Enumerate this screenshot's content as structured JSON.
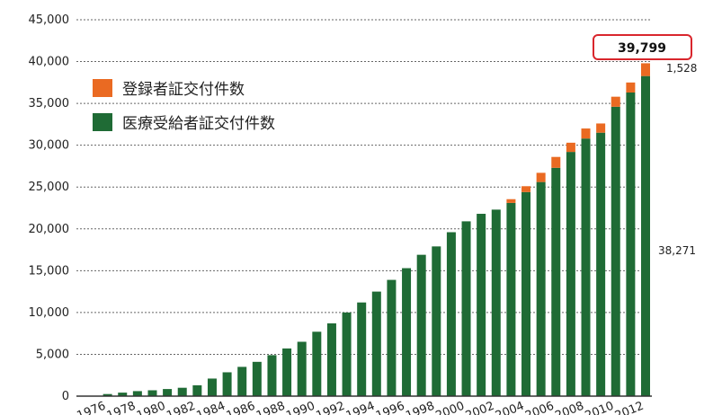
{
  "chart_data": {
    "type": "bar",
    "stacked": true,
    "title": "",
    "xlabel": "",
    "ylabel": "",
    "ylim": [
      0,
      45000
    ],
    "yticks": [
      "0",
      "5,000",
      "10,000",
      "15,000",
      "20,000",
      "25,000",
      "30,000",
      "35,000",
      "40,000",
      "45,000"
    ],
    "ytick_values": [
      0,
      5000,
      10000,
      15000,
      20000,
      25000,
      30000,
      35000,
      40000,
      45000
    ],
    "grid": "horizontal dotted",
    "legend_position": "top-left",
    "categories": [
      "1976",
      "1977",
      "1978",
      "1979",
      "1980",
      "1981",
      "1982",
      "1983",
      "1984",
      "1985",
      "1986",
      "1987",
      "1988",
      "1989",
      "1990",
      "1991",
      "1992",
      "1993",
      "1994",
      "1995",
      "1996",
      "1997",
      "1998",
      "1999",
      "2000",
      "2001",
      "2002",
      "2003",
      "2004",
      "2005",
      "2006",
      "2007",
      "2008",
      "2009",
      "2010",
      "2011",
      "2012",
      "2013"
    ],
    "xtick_labels": [
      "1976",
      "1978",
      "1980",
      "1982",
      "1984",
      "1986",
      "1988",
      "1990",
      "1992",
      "1994",
      "1996",
      "1998",
      "2000",
      "2002",
      "2004",
      "2006",
      "2008",
      "2010",
      "2012"
    ],
    "series": [
      {
        "name": "医療受給者証交付件数",
        "color": "#1f6b35",
        "values": [
          50,
          250,
          420,
          600,
          700,
          850,
          1000,
          1300,
          2100,
          2850,
          3500,
          4100,
          4900,
          5700,
          6500,
          7700,
          8700,
          10000,
          11200,
          12500,
          13900,
          15300,
          16900,
          17900,
          19600,
          20900,
          21800,
          22300,
          23100,
          24400,
          25600,
          27300,
          29200,
          30800,
          31500,
          34600,
          36300,
          38271
        ]
      },
      {
        "name": "登録者証交付件数",
        "color": "#ea6a22",
        "values": [
          0,
          0,
          0,
          0,
          0,
          0,
          0,
          0,
          0,
          0,
          0,
          0,
          0,
          0,
          0,
          0,
          0,
          0,
          0,
          0,
          0,
          0,
          0,
          0,
          0,
          0,
          0,
          0,
          450,
          700,
          1100,
          1300,
          1100,
          1200,
          1100,
          1200,
          1200,
          1528
        ]
      }
    ],
    "annotations": {
      "total": "39,799",
      "top_segment": "1,528",
      "bottom_segment": "38,271"
    }
  },
  "colors": {
    "total_box_border": "#d9262d",
    "grid": "#666666",
    "axis": "#333333"
  }
}
